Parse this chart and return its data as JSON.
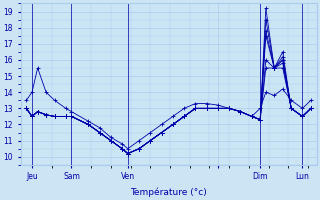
{
  "xlabel": "Température (°c)",
  "ylim": [
    9.5,
    19.5
  ],
  "yticks": [
    10,
    11,
    12,
    13,
    14,
    15,
    16,
    17,
    18,
    19
  ],
  "bg_color": "#cce5f5",
  "grid_color": "#aaccee",
  "line_color": "#0000aa",
  "xlim": [
    0,
    105
  ],
  "xtick_positions": [
    4,
    18,
    38,
    70,
    85,
    100
  ],
  "xtick_labels": [
    "Jeu",
    "Sam",
    "Ven",
    "",
    "Dim",
    "Lun"
  ],
  "vline_positions": [
    4,
    18,
    38,
    85,
    100
  ],
  "series": [
    {
      "x": [
        2,
        4,
        6,
        9,
        12,
        16,
        18,
        24,
        28,
        32,
        36,
        38,
        42,
        46,
        50,
        54,
        58,
        62,
        66,
        70,
        74,
        78,
        82,
        85,
        87,
        90,
        93,
        96,
        100,
        103
      ],
      "y": [
        13.0,
        12.5,
        12.8,
        12.6,
        12.5,
        12.5,
        12.5,
        12.0,
        11.5,
        11.0,
        10.5,
        10.2,
        10.5,
        11.0,
        11.5,
        12.0,
        12.5,
        13.0,
        13.0,
        13.0,
        13.0,
        12.8,
        12.5,
        12.3,
        19.2,
        15.5,
        16.0,
        13.0,
        12.5,
        13.0
      ]
    },
    {
      "x": [
        2,
        4,
        6,
        9,
        12,
        16,
        18,
        24,
        28,
        32,
        36,
        38,
        42,
        46,
        50,
        54,
        58,
        62,
        66,
        70,
        74,
        78,
        82,
        85,
        87,
        90,
        93,
        96,
        100,
        103
      ],
      "y": [
        13.0,
        12.5,
        12.8,
        12.6,
        12.5,
        12.5,
        12.5,
        12.0,
        11.5,
        11.0,
        10.5,
        10.2,
        10.5,
        11.0,
        11.5,
        12.0,
        12.5,
        13.0,
        13.0,
        13.0,
        13.0,
        12.8,
        12.5,
        12.3,
        17.8,
        15.5,
        16.5,
        13.0,
        12.5,
        13.0
      ]
    },
    {
      "x": [
        2,
        4,
        6,
        9,
        12,
        16,
        18,
        24,
        28,
        32,
        36,
        38,
        42,
        46,
        50,
        54,
        58,
        62,
        66,
        70,
        74,
        78,
        82,
        85,
        87,
        90,
        93,
        96,
        100,
        103
      ],
      "y": [
        13.0,
        12.5,
        12.8,
        12.6,
        12.5,
        12.5,
        12.5,
        12.0,
        11.5,
        11.0,
        10.5,
        10.2,
        10.5,
        11.0,
        11.5,
        12.0,
        12.5,
        13.0,
        13.0,
        13.0,
        13.0,
        12.8,
        12.5,
        12.3,
        18.5,
        15.5,
        16.2,
        13.0,
        12.5,
        13.0
      ]
    },
    {
      "x": [
        2,
        4,
        6,
        9,
        12,
        16,
        18,
        24,
        28,
        32,
        36,
        38,
        42,
        46,
        50,
        54,
        58,
        62,
        66,
        70,
        74,
        78,
        82,
        85,
        87,
        90,
        93,
        96,
        100,
        103
      ],
      "y": [
        13.0,
        12.5,
        12.8,
        12.6,
        12.5,
        12.5,
        12.5,
        12.0,
        11.5,
        11.0,
        10.5,
        10.2,
        10.5,
        11.0,
        11.5,
        12.0,
        12.5,
        13.0,
        13.0,
        13.0,
        13.0,
        12.8,
        12.5,
        12.3,
        17.5,
        15.5,
        16.0,
        13.0,
        12.5,
        13.0
      ]
    },
    {
      "x": [
        2,
        4,
        6,
        9,
        12,
        16,
        18,
        24,
        28,
        32,
        36,
        38,
        42,
        46,
        50,
        54,
        58,
        62,
        66,
        70,
        74,
        78,
        82,
        85,
        87,
        90,
        93,
        96,
        100,
        103
      ],
      "y": [
        13.0,
        12.5,
        12.8,
        12.6,
        12.5,
        12.5,
        12.5,
        12.0,
        11.5,
        11.0,
        10.5,
        10.2,
        10.5,
        11.0,
        11.5,
        12.0,
        12.5,
        13.0,
        13.0,
        13.0,
        13.0,
        12.8,
        12.5,
        12.3,
        16.0,
        15.5,
        15.8,
        13.0,
        12.5,
        13.0
      ]
    },
    {
      "x": [
        2,
        4,
        6,
        9,
        12,
        16,
        18,
        24,
        28,
        32,
        36,
        38,
        42,
        46,
        50,
        54,
        58,
        62,
        66,
        70,
        74,
        78,
        82,
        85,
        87,
        90,
        93,
        96,
        100,
        103
      ],
      "y": [
        13.0,
        12.5,
        12.8,
        12.6,
        12.5,
        12.5,
        12.5,
        12.0,
        11.5,
        11.0,
        10.5,
        10.2,
        10.5,
        11.0,
        11.5,
        12.0,
        12.5,
        13.0,
        13.0,
        13.0,
        13.0,
        12.8,
        12.5,
        12.3,
        15.5,
        15.5,
        15.5,
        13.0,
        12.5,
        13.0
      ]
    },
    {
      "x": [
        2,
        4,
        6,
        9,
        12,
        16,
        18,
        24,
        28,
        32,
        36,
        38,
        42,
        46,
        50,
        54,
        58,
        62,
        66,
        70,
        74,
        78,
        82,
        85,
        87,
        90,
        93,
        96,
        100,
        103
      ],
      "y": [
        13.5,
        14.0,
        15.5,
        14.0,
        13.5,
        13.0,
        12.8,
        12.2,
        11.8,
        11.2,
        10.8,
        10.5,
        11.0,
        11.5,
        12.0,
        12.5,
        13.0,
        13.3,
        13.3,
        13.2,
        13.0,
        12.8,
        12.5,
        13.0,
        14.0,
        13.8,
        14.2,
        13.5,
        13.0,
        13.5
      ]
    }
  ]
}
